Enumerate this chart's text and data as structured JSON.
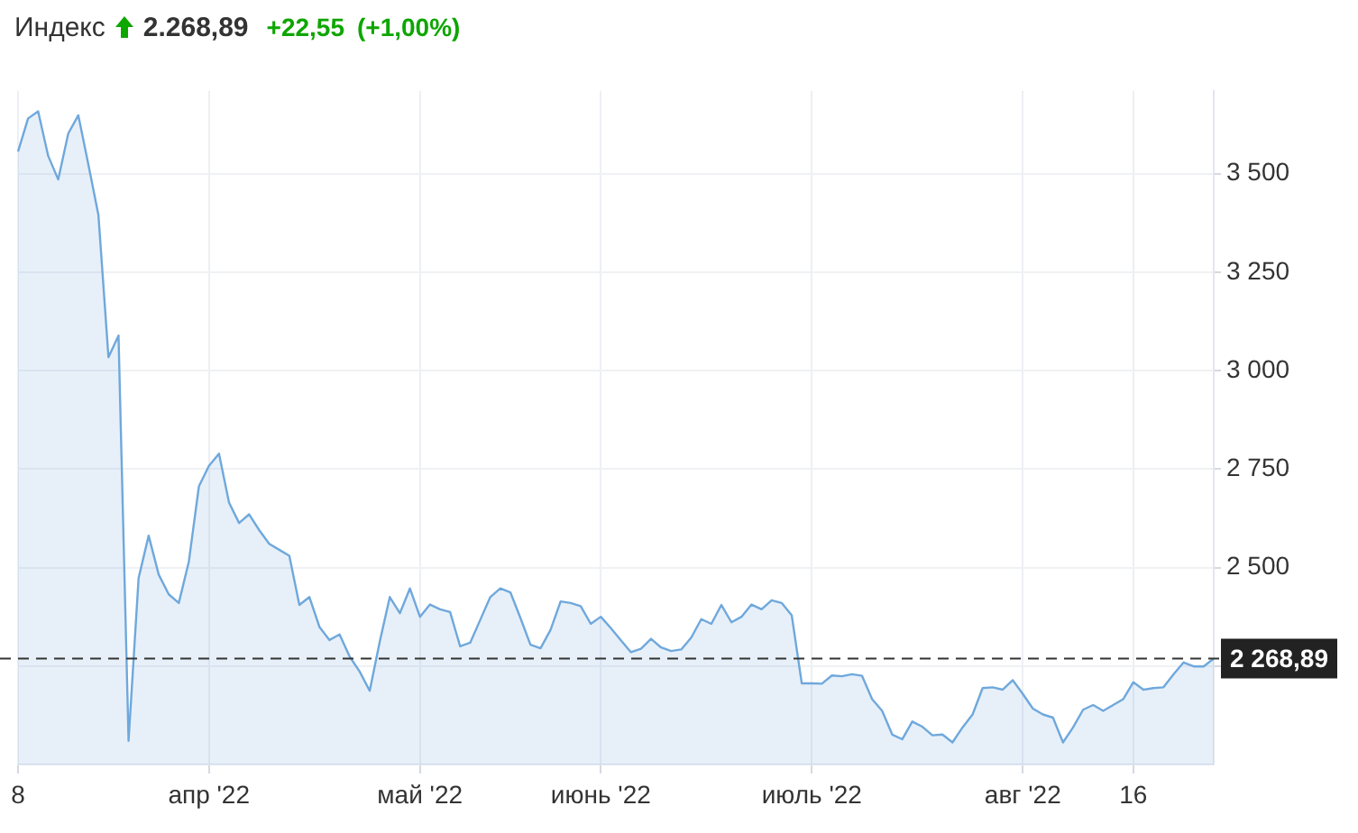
{
  "chart_data": {
    "type": "area",
    "title": "Индекс",
    "subtitle": "2.268,89",
    "annotations": [
      "+22,55",
      "(+1,00%)"
    ],
    "categories": [
      "8",
      null,
      null,
      null,
      null,
      null,
      null,
      null,
      null,
      null,
      null,
      null,
      null,
      null,
      null,
      null,
      null,
      null,
      null,
      "апр '22",
      null,
      null,
      null,
      null,
      null,
      null,
      null,
      null,
      null,
      null,
      null,
      null,
      null,
      null,
      null,
      null,
      null,
      null,
      null,
      null,
      "май '22",
      null,
      null,
      null,
      null,
      null,
      null,
      null,
      null,
      null,
      null,
      null,
      null,
      null,
      null,
      null,
      null,
      null,
      "июнь '22",
      null,
      null,
      null,
      null,
      null,
      null,
      null,
      null,
      null,
      null,
      null,
      null,
      null,
      null,
      null,
      null,
      null,
      null,
      null,
      null,
      "июль '22",
      null,
      null,
      null,
      null,
      null,
      null,
      null,
      null,
      null,
      null,
      null,
      null,
      null,
      null,
      null,
      null,
      null,
      null,
      null,
      null,
      "авг '22",
      null,
      null,
      null,
      null,
      null,
      null,
      null,
      null,
      null,
      null,
      "16",
      null,
      null,
      null,
      null,
      null,
      null,
      null,
      null
    ],
    "color": "#6fa8dc",
    "values": [
      3556,
      3640,
      3658,
      3545,
      3485,
      3602,
      3648,
      3523,
      3395,
      3034,
      3089,
      2060,
      2473,
      2581,
      2482,
      2432,
      2410,
      2515,
      2706,
      2758,
      2789,
      2665,
      2613,
      2635,
      2595,
      2560,
      2545,
      2530,
      2405,
      2425,
      2349,
      2316,
      2330,
      2274,
      2236,
      2187,
      2312,
      2425,
      2384,
      2447,
      2375,
      2406,
      2394,
      2387,
      2300,
      2309,
      2367,
      2425,
      2447,
      2437,
      2372,
      2304,
      2295,
      2342,
      2414,
      2410,
      2402,
      2357,
      2375,
      2346,
      2315,
      2285,
      2294,
      2319,
      2297,
      2288,
      2292,
      2322,
      2369,
      2357,
      2405,
      2361,
      2375,
      2406,
      2394,
      2417,
      2410,
      2379,
      2206,
      2206,
      2205,
      2226,
      2224,
      2229,
      2225,
      2166,
      2136,
      2076,
      2064,
      2109,
      2096,
      2074,
      2076,
      2056,
      2094,
      2127,
      2194,
      2196,
      2190,
      2214,
      2179,
      2142,
      2127,
      2119,
      2056,
      2094,
      2139,
      2151,
      2136,
      2151,
      2166,
      2209,
      2190,
      2194,
      2196,
      2229,
      2259,
      2249,
      2249,
      2269
    ],
    "ylim": [
      2000,
      3710
    ],
    "yticks": [
      {
        "value": 2250,
        "label": null
      },
      {
        "value": 2500,
        "label": "2 500"
      },
      {
        "value": 2750,
        "label": "2 750"
      },
      {
        "value": 3000,
        "label": "3 000"
      },
      {
        "value": 3250,
        "label": "3 250"
      },
      {
        "value": 3500,
        "label": "3 500"
      }
    ],
    "grid": true,
    "marker": "none",
    "line_style": "solid",
    "ref_lines": [
      {
        "axis": "y",
        "value": 2268.89,
        "label": "2 268,89",
        "line_style": "dashed",
        "color": "#333333"
      }
    ]
  }
}
